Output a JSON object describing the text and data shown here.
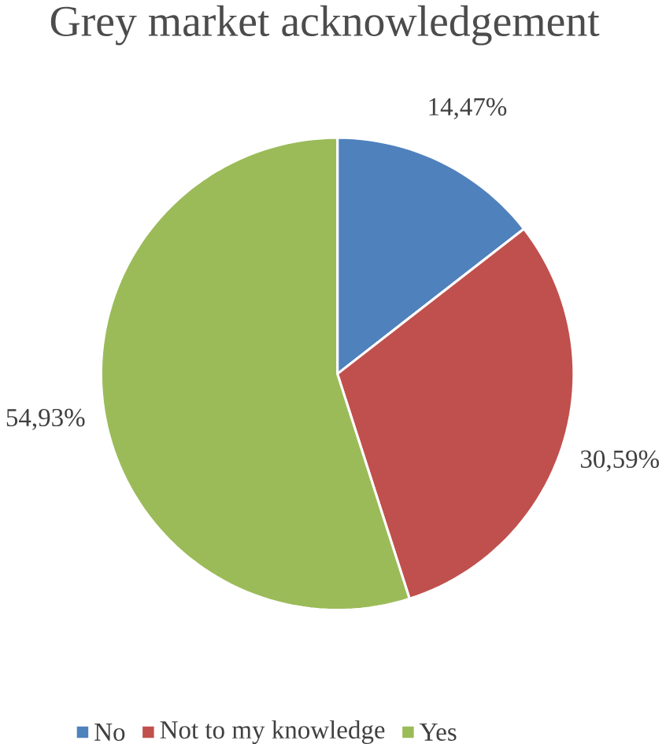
{
  "chart_data": {
    "type": "pie",
    "title": "Grey market acknowledgement",
    "categories": [
      "No",
      "Not to my knowledge",
      "Yes"
    ],
    "values": [
      14.47,
      30.59,
      54.93
    ],
    "value_labels": [
      "14,47%",
      "30,59%",
      "54,93%"
    ],
    "colors": [
      "#4f81bd",
      "#c0504d",
      "#9bbb59"
    ],
    "legend": "bottom"
  }
}
